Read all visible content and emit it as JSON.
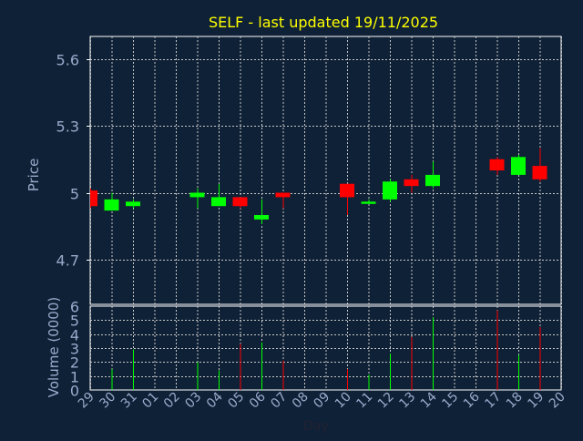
{
  "chart_data": {
    "type": "candlestick",
    "title": "SELF - last updated 19/11/2025",
    "xlabel": "Day",
    "ylabel": "Price",
    "volume_label": "Volume (0000)",
    "grid": true,
    "x_ticks": [
      "29",
      "30",
      "31",
      "01",
      "02",
      "03",
      "04",
      "05",
      "06",
      "07",
      "08",
      "09",
      "10",
      "11",
      "12",
      "13",
      "14",
      "15",
      "16",
      "17",
      "18",
      "19",
      "20"
    ],
    "price_ylim": [
      4.5,
      5.7
    ],
    "price_ticks": [
      4.7,
      5,
      5.3,
      5.6
    ],
    "price_tick_labels": [
      "4.7",
      "5",
      "5.3",
      "5.6"
    ],
    "volume_ylim": [
      0,
      6
    ],
    "volume_ticks": [
      0,
      1,
      2,
      3,
      4,
      5,
      6
    ],
    "colors": {
      "up": "#00ff00",
      "down": "#ff0000",
      "title": "#ffff00",
      "axis_text": "#99aacc",
      "background": "#0f2136",
      "frame": "#ffffff"
    },
    "candles": [
      {
        "day": "29",
        "open": 5.01,
        "high": 5.02,
        "low": 4.93,
        "close": 4.94,
        "volume": 0
      },
      {
        "day": "30",
        "open": 4.92,
        "high": 5.0,
        "low": 4.92,
        "close": 4.97,
        "volume": 1.5
      },
      {
        "day": "31",
        "open": 4.94,
        "high": 4.97,
        "low": 4.93,
        "close": 4.96,
        "volume": 2.9
      },
      {
        "day": "03",
        "open": 4.98,
        "high": 5.02,
        "low": 4.93,
        "close": 5.0,
        "volume": 2.0
      },
      {
        "day": "04",
        "open": 4.94,
        "high": 5.04,
        "low": 4.94,
        "close": 4.98,
        "volume": 1.4
      },
      {
        "day": "05",
        "open": 4.98,
        "high": 4.98,
        "low": 4.93,
        "close": 4.94,
        "volume": 3.3
      },
      {
        "day": "06",
        "open": 4.88,
        "high": 4.97,
        "low": 4.86,
        "close": 4.9,
        "volume": 3.4
      },
      {
        "day": "07",
        "open": 5.0,
        "high": 5.0,
        "low": 4.93,
        "close": 4.98,
        "volume": 2.1
      },
      {
        "day": "10",
        "open": 5.04,
        "high": 5.04,
        "low": 4.9,
        "close": 4.98,
        "volume": 1.5
      },
      {
        "day": "11",
        "open": 4.95,
        "high": 4.97,
        "low": 4.95,
        "close": 4.96,
        "volume": 1.1
      },
      {
        "day": "12",
        "open": 4.97,
        "high": 5.06,
        "low": 4.96,
        "close": 5.05,
        "volume": 2.6
      },
      {
        "day": "13",
        "open": 5.06,
        "high": 5.08,
        "low": 5.0,
        "close": 5.03,
        "volume": 3.8
      },
      {
        "day": "14",
        "open": 5.03,
        "high": 5.14,
        "low": 5.02,
        "close": 5.08,
        "volume": 5.2
      },
      {
        "day": "17",
        "open": 5.15,
        "high": 5.16,
        "low": 5.08,
        "close": 5.1,
        "volume": 5.7
      },
      {
        "day": "18",
        "open": 5.08,
        "high": 5.17,
        "low": 5.08,
        "close": 5.16,
        "volume": 2.5
      },
      {
        "day": "19",
        "open": 5.12,
        "high": 5.2,
        "low": 5.05,
        "close": 5.06,
        "volume": 4.5
      }
    ]
  }
}
